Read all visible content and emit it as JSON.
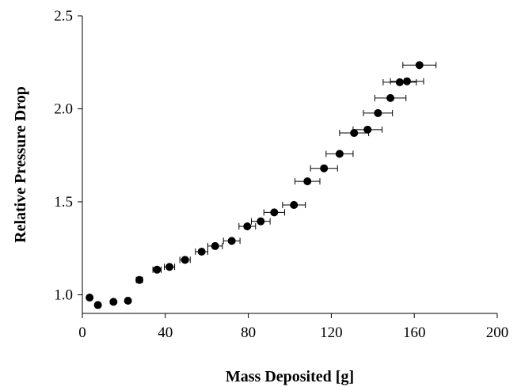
{
  "chart_data": {
    "type": "scatter",
    "title": "",
    "xlabel": "Mass Deposited [g]",
    "ylabel": "Relative Pressure Drop",
    "xlim": [
      0,
      200
    ],
    "ylim": [
      0.9,
      2.5
    ],
    "xticks": [
      0,
      40,
      80,
      120,
      160,
      200
    ],
    "yticks": [
      1.0,
      1.5,
      2.0,
      2.5
    ],
    "xtick_labels": [
      "0",
      "40",
      "80",
      "120",
      "160",
      "200"
    ],
    "ytick_labels": [
      "1.0",
      "1.5",
      "2.0",
      "2.5"
    ],
    "grid": false,
    "legend": "none",
    "marker_color": "#000000",
    "series": [
      {
        "x": [
          3.5,
          7.5,
          15,
          22,
          27.5,
          36,
          42,
          49.5,
          57.5,
          64,
          72,
          79.5,
          86,
          92.5,
          102,
          108.5,
          116.5,
          124,
          131,
          137.5,
          142.5,
          148.5,
          153,
          156.5,
          162.5
        ],
        "y": [
          0.985,
          0.945,
          0.962,
          0.968,
          1.08,
          1.135,
          1.15,
          1.188,
          1.232,
          1.262,
          1.29,
          1.368,
          1.395,
          1.443,
          1.483,
          1.61,
          1.68,
          1.758,
          1.87,
          1.888,
          1.977,
          2.058,
          2.143,
          2.148,
          2.235
        ],
        "x_error": [
          0,
          0,
          0,
          0,
          1.5,
          2,
          2.5,
          2.5,
          3,
          3.5,
          4,
          4,
          4.5,
          5,
          5.5,
          6,
          6.5,
          6.5,
          7,
          7,
          7,
          7.5,
          8,
          8,
          8
        ]
      }
    ]
  }
}
